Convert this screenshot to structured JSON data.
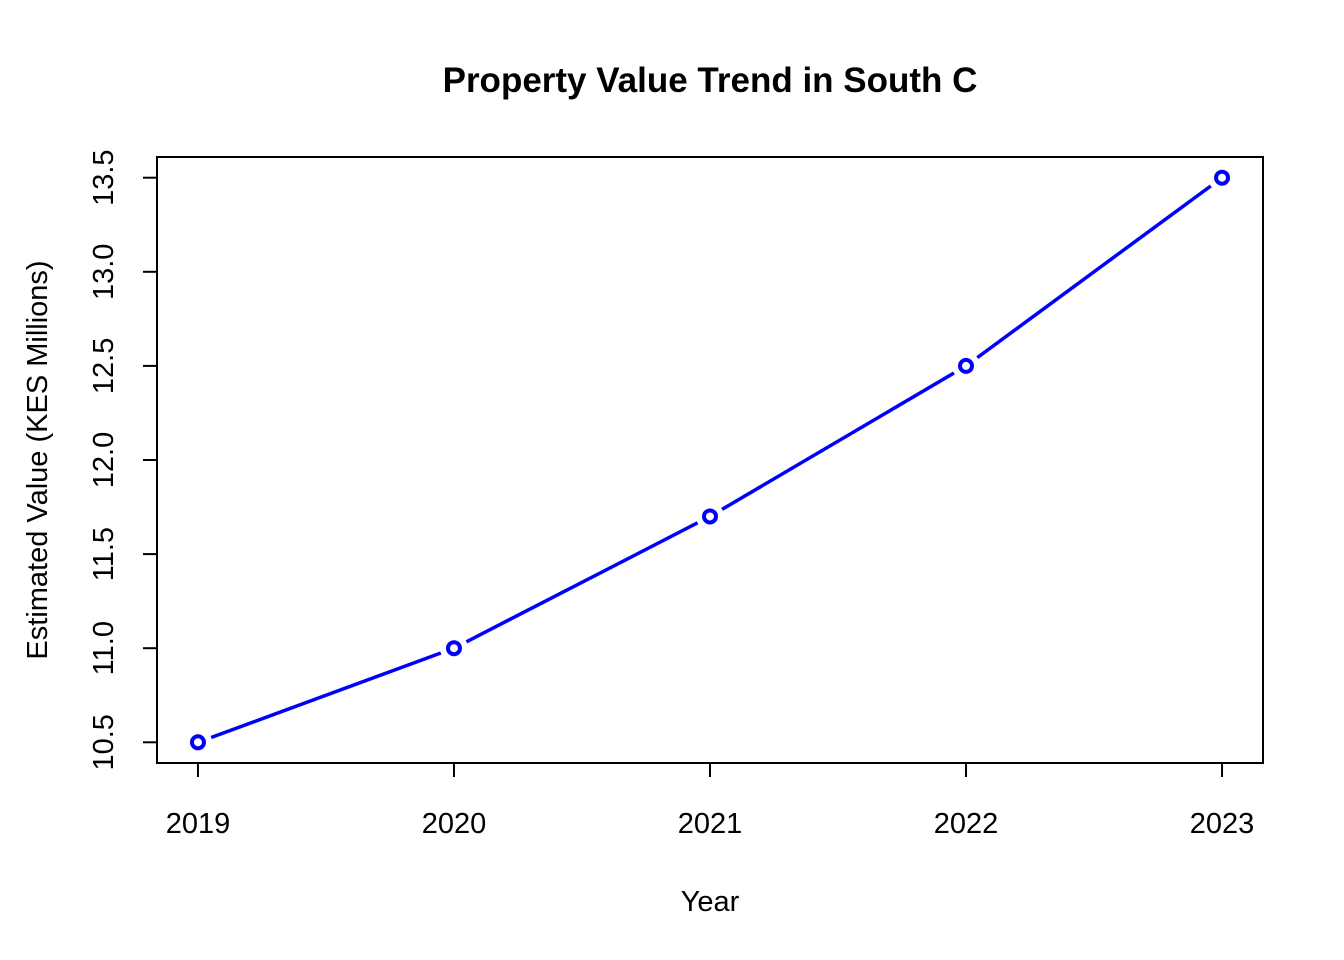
{
  "chart_data": {
    "type": "line",
    "title": "Property Value Trend in South C",
    "xlabel": "Year",
    "ylabel": "Estimated Value (KES Millions)",
    "x": [
      2019,
      2020,
      2021,
      2022,
      2023
    ],
    "series": [
      {
        "values": [
          10.5,
          11.0,
          11.7,
          12.5,
          13.5
        ],
        "color": "#0000ff"
      }
    ],
    "xticks": [
      "2019",
      "2020",
      "2021",
      "2022",
      "2023"
    ],
    "yticks": [
      "10.5",
      "11.0",
      "11.5",
      "12.0",
      "12.5",
      "13.0",
      "13.5"
    ],
    "ylim": [
      10.39,
      13.61
    ],
    "xlim": [
      2018.84,
      2023.16
    ],
    "grid": false,
    "legend": "none",
    "marker": "open-circle"
  }
}
